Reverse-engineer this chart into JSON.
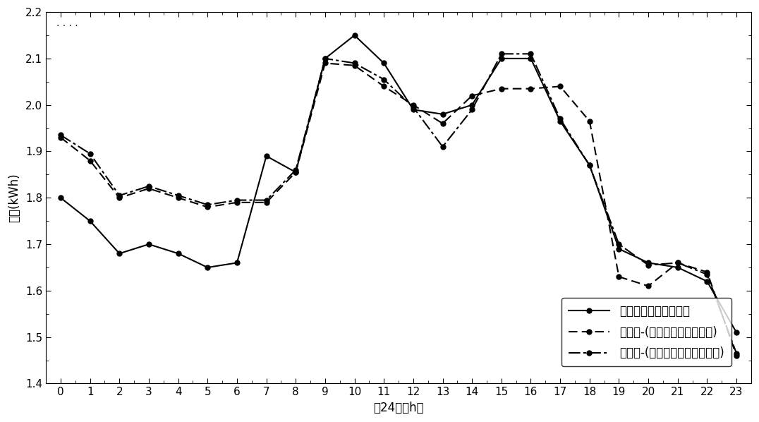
{
  "hours": [
    0,
    1,
    2,
    3,
    4,
    5,
    6,
    7,
    8,
    9,
    10,
    11,
    12,
    13,
    14,
    15,
    16,
    17,
    18,
    19,
    20,
    21,
    22,
    23
  ],
  "series1_label": "优化前典型日负荷曲线",
  "series1": [
    1.8,
    1.75,
    1.68,
    1.7,
    1.68,
    1.65,
    1.66,
    1.89,
    1.855,
    2.1,
    2.15,
    2.09,
    1.99,
    1.98,
    2.0,
    2.1,
    2.1,
    1.965,
    1.87,
    1.69,
    1.66,
    1.65,
    1.62,
    1.51
  ],
  "series2_label": "优化后-(年需求价格弹性系数)",
  "series2": [
    1.93,
    1.88,
    1.8,
    1.82,
    1.8,
    1.78,
    1.79,
    1.79,
    1.855,
    2.09,
    2.085,
    2.04,
    2.0,
    1.96,
    2.02,
    2.035,
    2.035,
    2.04,
    1.965,
    1.63,
    1.61,
    1.66,
    1.64,
    1.46
  ],
  "series3_label": "优化后-(冬季需求价格弹性系数)",
  "series3": [
    1.935,
    1.895,
    1.805,
    1.825,
    1.805,
    1.785,
    1.795,
    1.795,
    1.86,
    2.1,
    2.09,
    2.055,
    1.995,
    1.91,
    1.99,
    2.11,
    2.11,
    1.97,
    1.87,
    1.7,
    1.655,
    1.66,
    1.635,
    1.465
  ],
  "xlabel": "日24时（h）",
  "ylabel": "负荷(kWh)",
  "ylim": [
    1.4,
    2.2
  ],
  "xlim": [
    -0.5,
    23.5
  ],
  "yticks": [
    1.4,
    1.5,
    1.6,
    1.7,
    1.8,
    1.9,
    2.0,
    2.1,
    2.2
  ],
  "xticks": [
    0,
    1,
    2,
    3,
    4,
    5,
    6,
    7,
    8,
    9,
    10,
    11,
    12,
    13,
    14,
    15,
    16,
    17,
    18,
    19,
    20,
    21,
    22,
    23
  ],
  "background_color": "#ffffff",
  "marker_size": 5,
  "linewidth": 1.5,
  "figsize": [
    10.76,
    5.98
  ],
  "dpi": 100
}
